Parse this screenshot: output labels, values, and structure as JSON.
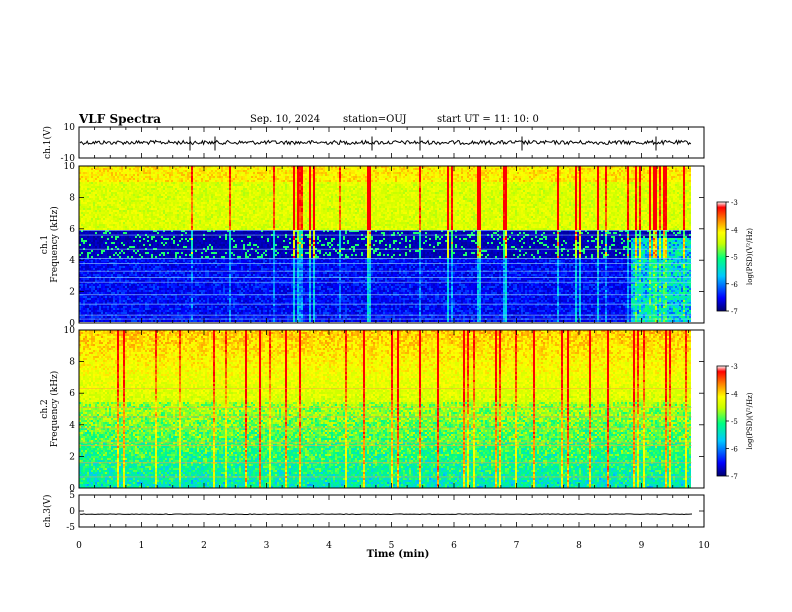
{
  "header": {
    "title": "VLF Spectra",
    "date": "Sep. 10, 2024",
    "station": "station=OUJ",
    "start_ut": "start UT =  11: 10: 0"
  },
  "colors": {
    "background": "#ffffff",
    "colormap": [
      "#000070",
      "#0000ff",
      "#00c8ff",
      "#00ff80",
      "#c8ff00",
      "#ffff00",
      "#ff8000",
      "#ff0000",
      "#ffffff"
    ]
  },
  "chart_data": [
    {
      "type": "line",
      "name": "ch1-waveform",
      "ylabel": "ch.1(V)",
      "ylim": [
        -10,
        10
      ],
      "yticks": [
        "10",
        "-10"
      ],
      "xlim": [
        0,
        10
      ],
      "approx_level": 0
    },
    {
      "type": "heatmap",
      "name": "ch1-spectrogram",
      "ylabel_line1": "ch.1",
      "ylabel_line2": "Frequency (kHz)",
      "ylim": [
        0,
        10
      ],
      "yticks": [
        "0",
        "2",
        "4",
        "6",
        "8",
        "10"
      ],
      "xlim": [
        0,
        10
      ],
      "data_end_min": 9.8,
      "colorbar": {
        "label": "log(PSD)(V²/Hz)",
        "ticks": [
          "-3",
          "-4",
          "-5",
          "-6",
          "-7"
        ],
        "range": [
          -7,
          -3
        ]
      }
    },
    {
      "type": "heatmap",
      "name": "ch2-spectrogram",
      "ylabel_line1": "ch.2",
      "ylabel_line2": "Frequency (kHz)",
      "ylim": [
        0,
        10
      ],
      "yticks": [
        "0",
        "2",
        "4",
        "6",
        "8",
        "10"
      ],
      "xlim": [
        0,
        10
      ],
      "data_end_min": 9.8,
      "colorbar": {
        "label": "log(PSD)(V²/Hz)",
        "ticks": [
          "-3",
          "-4",
          "-5",
          "-6",
          "-7"
        ],
        "range": [
          -7,
          -3
        ]
      }
    },
    {
      "type": "line",
      "name": "ch3-waveform",
      "ylabel": "ch.3(V)",
      "ylim": [
        -5,
        5
      ],
      "yticks": [
        "5",
        "0",
        "-5"
      ],
      "xlim": [
        0,
        10
      ],
      "approx_level": -1
    }
  ],
  "xaxis": {
    "label": "Time (min)",
    "ticks": [
      "0",
      "1",
      "2",
      "3",
      "4",
      "5",
      "6",
      "7",
      "8",
      "9",
      "10"
    ]
  }
}
